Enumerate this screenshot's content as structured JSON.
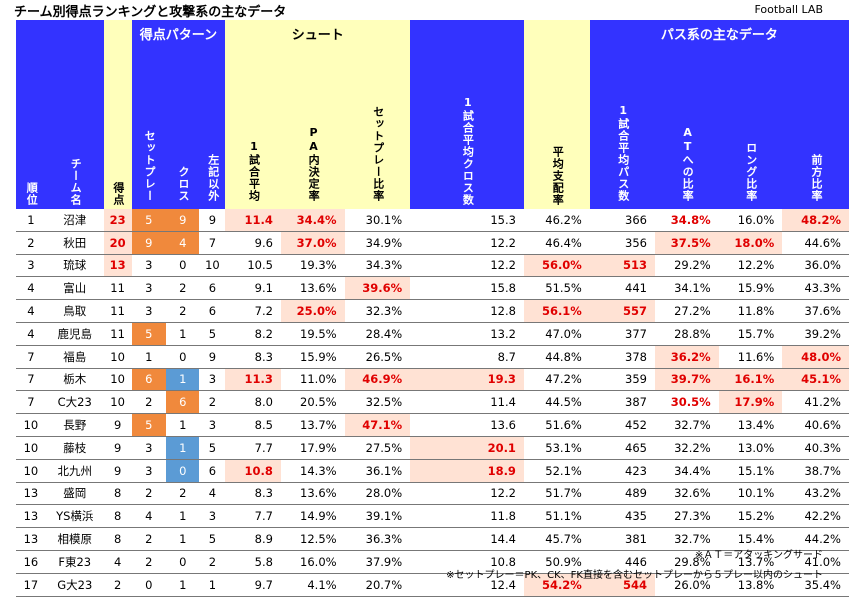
{
  "title": "チーム別得点ランキングと攻撃系の主なデータ",
  "brand": "Football LAB",
  "group_headers": {
    "pattern": "得点パターン",
    "shoot": "シュート",
    "pass": "パス系の主なデータ"
  },
  "columns": {
    "rank": "順位",
    "team": "チーム名",
    "goals": "得点",
    "setplay": "セットプレー",
    "cross": "クロス",
    "other": "左記以外",
    "shots_avg": "1試合平均",
    "pa_rate": "PA内決定率",
    "setplay_ratio": "セットプレー比率",
    "cross_avg": "1試合平均クロス数",
    "possession": "平均支配率",
    "pass_avg": "1試合平均パス数",
    "at_ratio": "ATへの比率",
    "long_ratio": "ロング比率",
    "forward_ratio": "前方比率"
  },
  "rows": [
    [
      "1",
      "沼津",
      "23",
      "5",
      "9",
      "9",
      "11.4",
      "34.4%",
      "30.1%",
      "15.3",
      "46.2%",
      "366",
      "34.8%",
      "16.0%",
      "48.2%"
    ],
    [
      "2",
      "秋田",
      "20",
      "9",
      "4",
      "7",
      "9.6",
      "37.0%",
      "34.9%",
      "12.2",
      "46.4%",
      "356",
      "37.5%",
      "18.0%",
      "44.6%"
    ],
    [
      "3",
      "琉球",
      "13",
      "3",
      "0",
      "10",
      "10.5",
      "19.3%",
      "34.3%",
      "12.2",
      "56.0%",
      "513",
      "29.2%",
      "12.2%",
      "36.0%"
    ],
    [
      "4",
      "富山",
      "11",
      "3",
      "2",
      "6",
      "9.1",
      "13.6%",
      "39.6%",
      "15.8",
      "51.5%",
      "441",
      "34.1%",
      "15.9%",
      "43.3%"
    ],
    [
      "4",
      "鳥取",
      "11",
      "3",
      "2",
      "6",
      "7.2",
      "25.0%",
      "32.3%",
      "12.8",
      "56.1%",
      "557",
      "27.2%",
      "11.8%",
      "37.6%"
    ],
    [
      "4",
      "鹿児島",
      "11",
      "5",
      "1",
      "5",
      "8.2",
      "19.5%",
      "28.4%",
      "13.2",
      "47.0%",
      "377",
      "28.8%",
      "15.7%",
      "39.2%"
    ],
    [
      "7",
      "福島",
      "10",
      "1",
      "0",
      "9",
      "8.3",
      "15.9%",
      "26.5%",
      "8.7",
      "44.8%",
      "378",
      "36.2%",
      "11.6%",
      "48.0%"
    ],
    [
      "7",
      "栃木",
      "10",
      "6",
      "1",
      "3",
      "11.3",
      "11.0%",
      "46.9%",
      "19.3",
      "47.2%",
      "359",
      "39.7%",
      "16.1%",
      "45.1%"
    ],
    [
      "7",
      "C大23",
      "10",
      "2",
      "6",
      "2",
      "8.0",
      "20.5%",
      "32.5%",
      "11.4",
      "44.5%",
      "387",
      "30.5%",
      "17.9%",
      "41.2%"
    ],
    [
      "10",
      "長野",
      "9",
      "5",
      "1",
      "3",
      "8.5",
      "13.7%",
      "47.1%",
      "13.6",
      "51.6%",
      "452",
      "32.7%",
      "13.4%",
      "40.6%"
    ],
    [
      "10",
      "藤枝",
      "9",
      "3",
      "1",
      "5",
      "7.7",
      "17.9%",
      "27.5%",
      "20.1",
      "53.1%",
      "465",
      "32.2%",
      "13.0%",
      "40.3%"
    ],
    [
      "10",
      "北九州",
      "9",
      "3",
      "0",
      "6",
      "10.8",
      "14.3%",
      "36.1%",
      "18.9",
      "52.1%",
      "423",
      "34.4%",
      "15.1%",
      "38.7%"
    ],
    [
      "13",
      "盛岡",
      "8",
      "2",
      "2",
      "4",
      "8.3",
      "13.6%",
      "28.0%",
      "12.2",
      "51.7%",
      "489",
      "32.6%",
      "10.1%",
      "43.2%"
    ],
    [
      "13",
      "YS横浜",
      "8",
      "4",
      "1",
      "3",
      "7.7",
      "14.9%",
      "39.1%",
      "11.8",
      "51.1%",
      "435",
      "27.3%",
      "15.2%",
      "42.2%"
    ],
    [
      "13",
      "相模原",
      "8",
      "2",
      "1",
      "5",
      "8.9",
      "12.5%",
      "36.3%",
      "14.4",
      "45.7%",
      "381",
      "32.7%",
      "15.4%",
      "44.2%"
    ],
    [
      "16",
      "F東23",
      "4",
      "2",
      "0",
      "2",
      "5.8",
      "16.0%",
      "37.9%",
      "10.8",
      "50.9%",
      "446",
      "29.8%",
      "13.7%",
      "41.0%"
    ],
    [
      "17",
      "G大23",
      "2",
      "0",
      "1",
      "1",
      "9.7",
      "4.1%",
      "20.7%",
      "12.4",
      "54.2%",
      "544",
      "26.0%",
      "13.8%",
      "35.4%"
    ]
  ],
  "highlights": {
    "pink": [
      [
        0,
        2
      ],
      [
        0,
        6
      ],
      [
        0,
        7
      ],
      [
        0,
        14
      ],
      [
        1,
        2
      ],
      [
        1,
        7
      ],
      [
        1,
        12
      ],
      [
        1,
        13
      ],
      [
        2,
        2
      ],
      [
        2,
        10
      ],
      [
        2,
        11
      ],
      [
        3,
        8
      ],
      [
        4,
        7
      ],
      [
        4,
        10
      ],
      [
        4,
        11
      ],
      [
        6,
        12
      ],
      [
        6,
        14
      ],
      [
        7,
        6
      ],
      [
        7,
        8
      ],
      [
        7,
        9
      ],
      [
        7,
        12
      ],
      [
        7,
        13
      ],
      [
        7,
        14
      ],
      [
        8,
        13
      ],
      [
        9,
        8
      ],
      [
        10,
        9
      ],
      [
        11,
        6
      ],
      [
        11,
        9
      ],
      [
        16,
        10
      ],
      [
        16,
        11
      ]
    ],
    "red_text": [
      [
        0,
        12
      ],
      [
        8,
        12
      ]
    ],
    "orange": [
      [
        0,
        3
      ],
      [
        0,
        4
      ],
      [
        1,
        3
      ],
      [
        1,
        4
      ],
      [
        5,
        3
      ],
      [
        7,
        3
      ],
      [
        8,
        4
      ],
      [
        9,
        3
      ]
    ],
    "blue": [
      [
        7,
        4
      ],
      [
        10,
        4
      ],
      [
        11,
        4
      ]
    ]
  },
  "notes": [
    "※ＡＴ＝アタッキングサード",
    "※セットプレー＝PK、CK、FK直接を含むセットプレーから５プレー以内のシュート"
  ]
}
